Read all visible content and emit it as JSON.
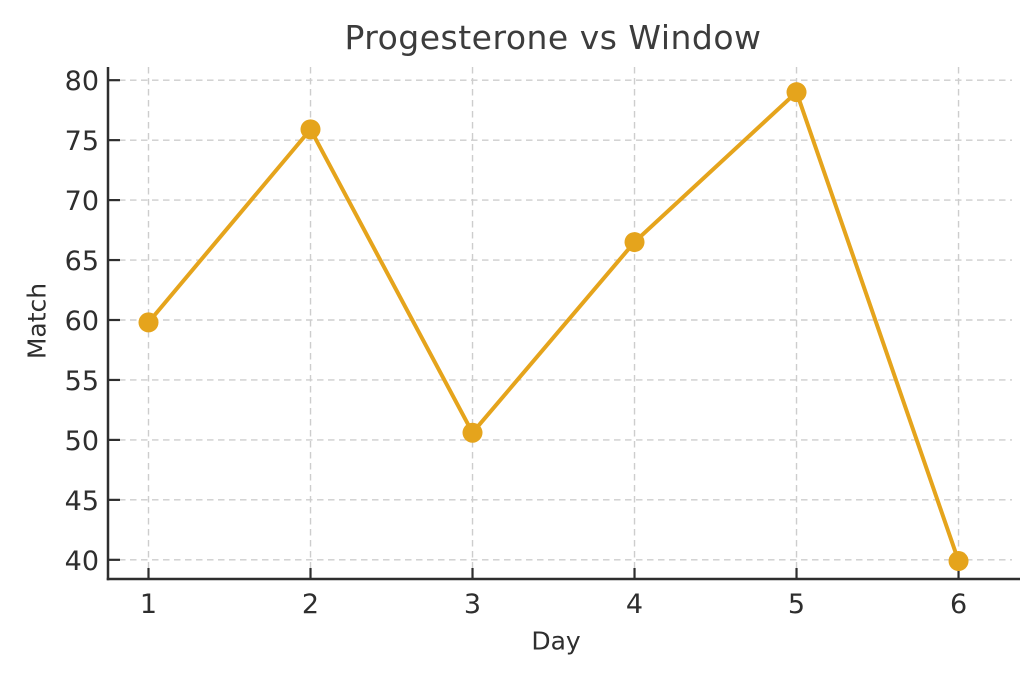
{
  "chart_data": {
    "type": "line",
    "title": "Progesterone vs Window",
    "xlabel": "Day",
    "ylabel": "Match",
    "x": [
      1,
      2,
      3,
      4,
      5,
      6
    ],
    "values": [
      59.8,
      75.9,
      50.6,
      66.5,
      79.0,
      39.9
    ],
    "xticks": [
      "1",
      "2",
      "3",
      "4",
      "5",
      "6"
    ],
    "yticks": [
      "40",
      "45",
      "50",
      "55",
      "60",
      "65",
      "70",
      "75",
      "80"
    ],
    "xlim": [
      0.75,
      6.33
    ],
    "ylim": [
      38.4,
      81.1
    ],
    "grid": true,
    "grid_style": "dashed",
    "legend_position": "none",
    "marker_shape": "circle",
    "colors": {
      "line": "#E5A41C",
      "marker": "#E5A41C",
      "grid": "#CDCDCD",
      "axis": "#2E2E2E",
      "tick_label": "#2E2E2E",
      "title": "#3C3C3C",
      "background": "#FFFFFF"
    }
  }
}
